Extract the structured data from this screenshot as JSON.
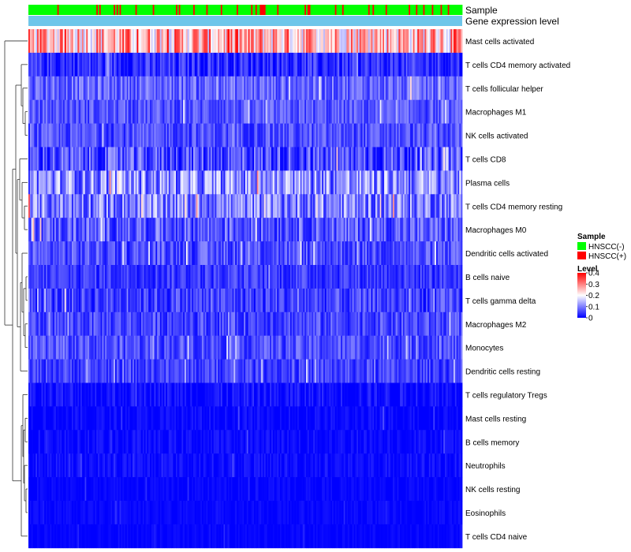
{
  "chart_data": {
    "type": "heatmap",
    "title": "",
    "annotation_tracks": [
      {
        "name": "Sample",
        "kind": "categorical"
      },
      {
        "name": "Gene expression level",
        "kind": "continuous",
        "color": "#6ec6ea"
      }
    ],
    "rows": [
      {
        "label": "Mast cells activated",
        "mean": 0.26,
        "spread": 0.12
      },
      {
        "label": "T cells CD4 memory activated",
        "mean": 0.035,
        "spread": 0.05
      },
      {
        "label": "T cells follicular helper",
        "mean": 0.08,
        "spread": 0.05
      },
      {
        "label": "Macrophages M1",
        "mean": 0.065,
        "spread": 0.045
      },
      {
        "label": "NK cells activated",
        "mean": 0.06,
        "spread": 0.045
      },
      {
        "label": "T cells CD8",
        "mean": 0.06,
        "spread": 0.07
      },
      {
        "label": "Plasma cells",
        "mean": 0.11,
        "spread": 0.09
      },
      {
        "label": "T cells CD4 memory resting",
        "mean": 0.1,
        "spread": 0.08
      },
      {
        "label": "Macrophages M0",
        "mean": 0.07,
        "spread": 0.06
      },
      {
        "label": "Dendritic cells activated",
        "mean": 0.06,
        "spread": 0.05
      },
      {
        "label": "B cells naive",
        "mean": 0.045,
        "spread": 0.04
      },
      {
        "label": "T cells gamma delta",
        "mean": 0.05,
        "spread": 0.05
      },
      {
        "label": "Macrophages M2",
        "mean": 0.055,
        "spread": 0.045
      },
      {
        "label": "Monocytes",
        "mean": 0.06,
        "spread": 0.045
      },
      {
        "label": "Dendritic cells resting",
        "mean": 0.05,
        "spread": 0.04
      },
      {
        "label": "T cells regulatory  Tregs",
        "mean": 0.012,
        "spread": 0.03
      },
      {
        "label": "Mast cells resting",
        "mean": 0.005,
        "spread": 0.02
      },
      {
        "label": "B cells memory",
        "mean": 0.008,
        "spread": 0.02
      },
      {
        "label": "Neutrophils",
        "mean": 0.01,
        "spread": 0.02
      },
      {
        "label": "NK cells resting",
        "mean": 0.004,
        "spread": 0.012
      },
      {
        "label": "Eosinophils",
        "mean": 0.004,
        "spread": 0.012
      },
      {
        "label": "T cells CD4 naive",
        "mean": 0.003,
        "spread": 0.01
      }
    ],
    "n_samples": 300,
    "sample_fraction_positive": 0.15,
    "legend": {
      "placement": "right",
      "sample_title": "Sample",
      "sample_entries": [
        {
          "label": "HNSCC(-)",
          "color": "#00ff00"
        },
        {
          "label": "HNSCC(+)",
          "color": "#ff0000"
        }
      ],
      "level_title": "Level",
      "level_ticks": [
        "0.4",
        "0.3",
        "0.2",
        "0.1",
        "0"
      ],
      "level_tick_values": [
        0.4,
        0.3,
        0.2,
        0.1,
        0
      ],
      "scale": {
        "min": 0,
        "mid": 0.2,
        "max": 0.4,
        "low_color": "#0000ff",
        "mid_color": "#ffffff",
        "high_color": "#ff0000"
      }
    },
    "dendrogram": "row-clustering"
  }
}
